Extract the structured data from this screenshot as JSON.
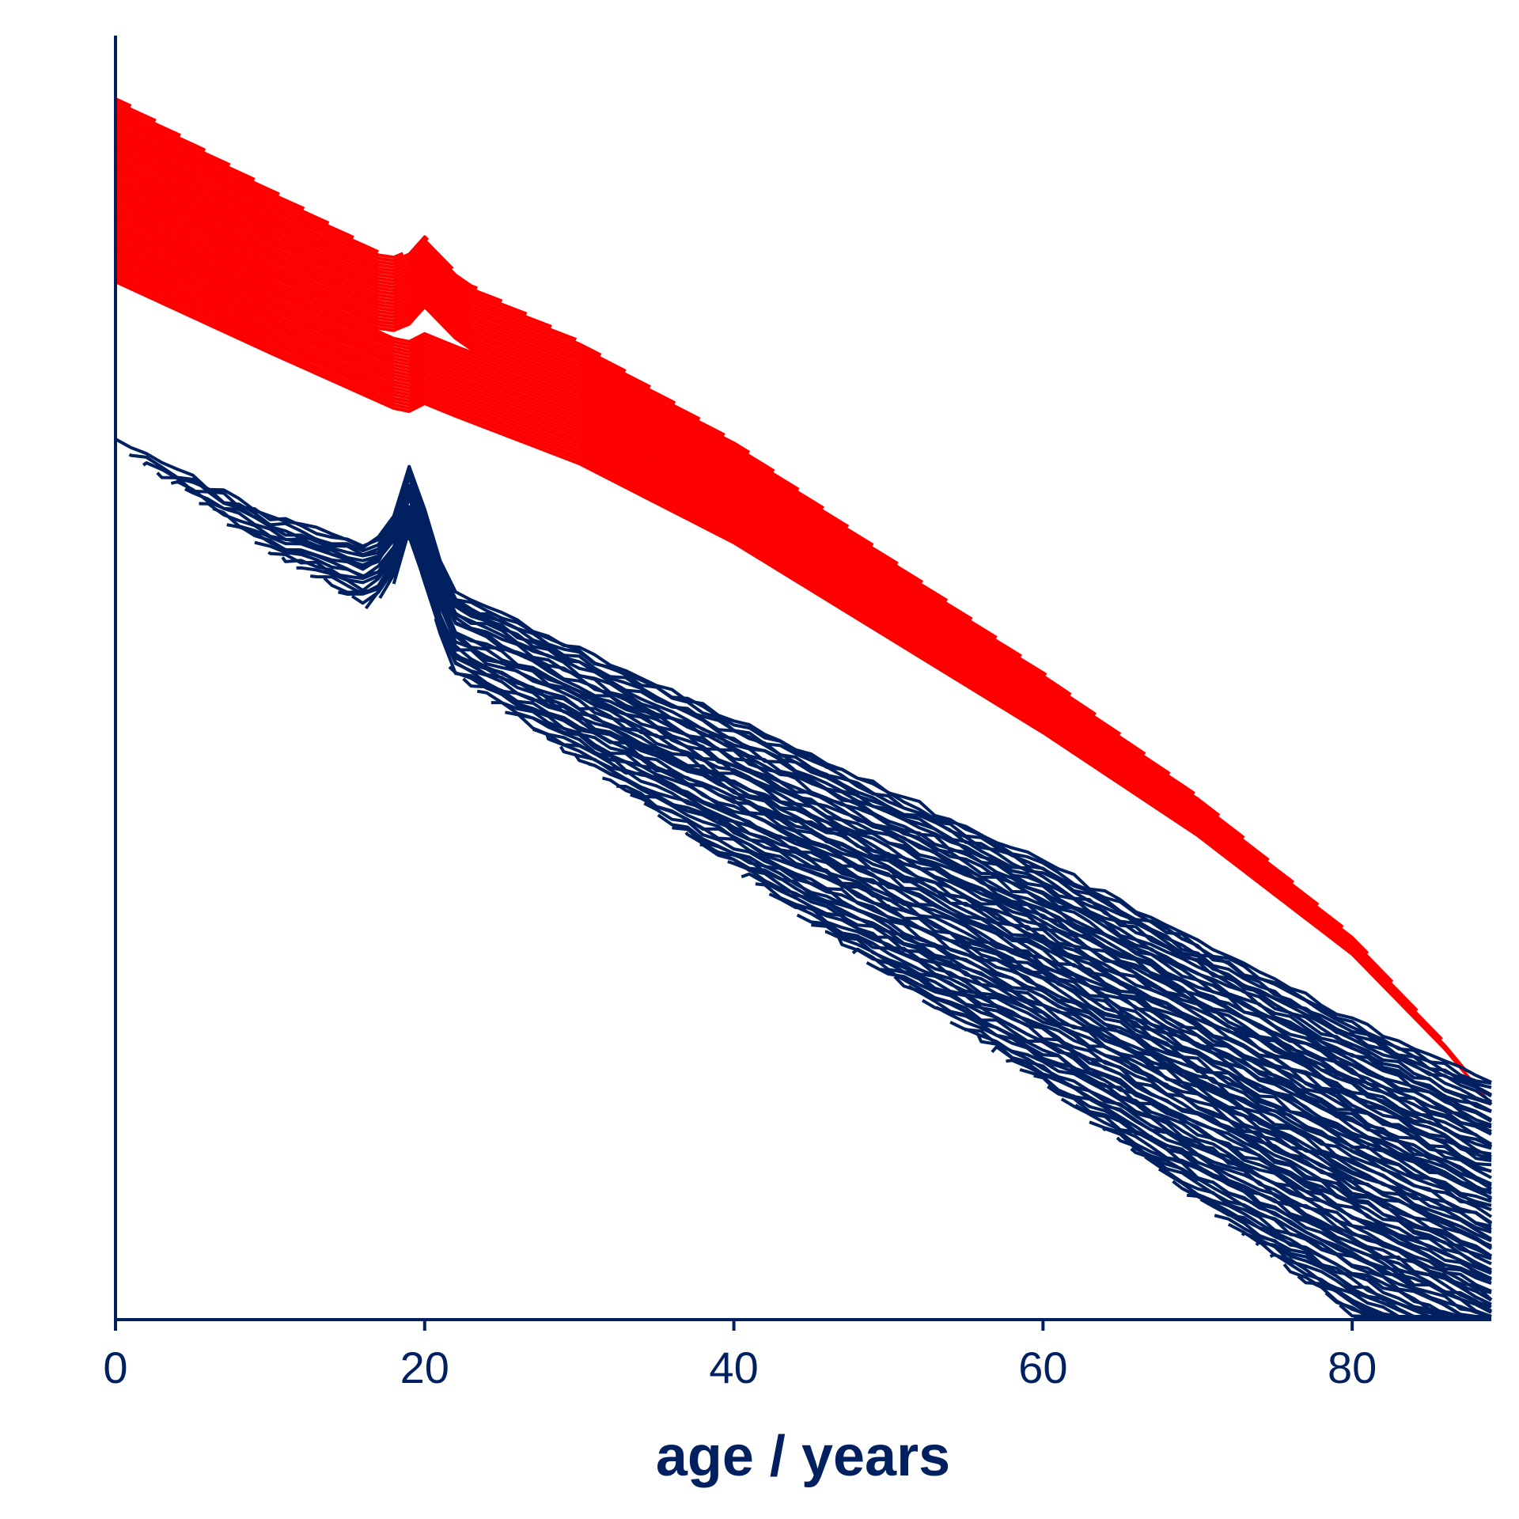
{
  "chart_data": {
    "type": "line",
    "title": "",
    "xlabel": "age / years",
    "ylabel": "",
    "xlim": [
      0,
      89
    ],
    "x_ticks": [
      {
        "value": 0,
        "label": "0"
      },
      {
        "value": 20,
        "label": "20"
      },
      {
        "value": 40,
        "label": "40"
      },
      {
        "value": 60,
        "label": "60"
      },
      {
        "value": 80,
        "label": "80"
      }
    ],
    "grid": false,
    "legend": "none",
    "colors": {
      "upper_series": "#ff0000",
      "lower_series": "#002060",
      "axis": "#002060"
    },
    "series_groups": [
      {
        "color_key": "upper_series",
        "count": 56,
        "start_age_first": 0,
        "start_age_step": 0,
        "end_age_first": 1,
        "end_age_step": 1.6,
        "peak_age": 20,
        "peak_height": 2.5,
        "profile": [
          [
            0,
            3.5
          ],
          [
            10,
            8.0
          ],
          [
            18,
            11.5
          ],
          [
            19,
            11.7
          ],
          [
            20,
            11.2
          ],
          [
            22,
            12.0
          ],
          [
            30,
            15.0
          ],
          [
            40,
            20.0
          ],
          [
            50,
            26.0
          ],
          [
            60,
            32.0
          ],
          [
            70,
            38.5
          ],
          [
            80,
            46.0
          ],
          [
            86,
            52.0
          ],
          [
            89,
            55.5
          ]
        ]
      },
      {
        "color_key": "lower_series",
        "count": 92,
        "start_age_first": 0,
        "start_age_step": 0.9,
        "end_age_first": 89,
        "end_age_step": 0,
        "peak_age": 19,
        "peak_height": 3.5,
        "profile": [
          [
            0,
            13.5
          ],
          [
            10,
            18.0
          ],
          [
            18,
            20.5
          ],
          [
            19,
            19.0
          ],
          [
            22,
            23.0
          ],
          [
            30,
            26.5
          ],
          [
            40,
            31.0
          ],
          [
            50,
            35.5
          ],
          [
            60,
            40.0
          ],
          [
            70,
            45.0
          ],
          [
            80,
            50.0
          ],
          [
            89,
            54.0
          ]
        ]
      }
    ]
  }
}
